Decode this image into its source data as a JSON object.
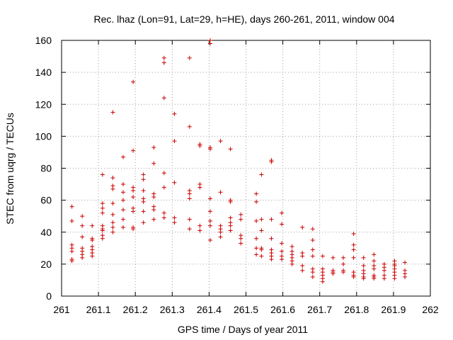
{
  "chart_data": {
    "type": "scatter",
    "title": "Rec. lhaz (Lon=91, Lat=29, h=HE), days 260-261, 2011, window 004",
    "xlabel": "GPS time / Days of year 2011",
    "ylabel": "STEC from uqrg / TECUs",
    "xlim": [
      261,
      262
    ],
    "ylim": [
      0,
      160
    ],
    "xticks": [
      "261",
      "261.1",
      "261.2",
      "261.3",
      "261.4",
      "261.5",
      "261.6",
      "261.7",
      "261.8",
      "261.9",
      "262"
    ],
    "yticks": [
      "0",
      "20",
      "40",
      "60",
      "80",
      "100",
      "120",
      "140",
      "160"
    ],
    "grid": true,
    "legend": "none",
    "marker": "+",
    "marker_color": "#cc0000",
    "series": [
      {
        "name": "STEC",
        "points": [
          [
            261.028,
            56
          ],
          [
            261.028,
            47
          ],
          [
            261.028,
            32
          ],
          [
            261.028,
            30
          ],
          [
            261.028,
            28
          ],
          [
            261.028,
            23
          ],
          [
            261.028,
            22
          ],
          [
            261.056,
            50
          ],
          [
            261.056,
            44
          ],
          [
            261.056,
            37
          ],
          [
            261.056,
            30
          ],
          [
            261.056,
            28
          ],
          [
            261.056,
            26
          ],
          [
            261.056,
            24
          ],
          [
            261.083,
            44
          ],
          [
            261.083,
            36
          ],
          [
            261.083,
            35
          ],
          [
            261.083,
            31
          ],
          [
            261.083,
            29
          ],
          [
            261.083,
            27
          ],
          [
            261.083,
            25
          ],
          [
            261.111,
            76
          ],
          [
            261.111,
            58
          ],
          [
            261.111,
            55
          ],
          [
            261.111,
            52
          ],
          [
            261.111,
            44
          ],
          [
            261.111,
            42
          ],
          [
            261.111,
            41
          ],
          [
            261.111,
            38
          ],
          [
            261.111,
            36
          ],
          [
            261.139,
            115
          ],
          [
            261.139,
            74
          ],
          [
            261.139,
            69
          ],
          [
            261.139,
            67
          ],
          [
            261.139,
            58
          ],
          [
            261.139,
            51
          ],
          [
            261.139,
            46
          ],
          [
            261.139,
            43
          ],
          [
            261.139,
            40
          ],
          [
            261.167,
            87
          ],
          [
            261.167,
            70
          ],
          [
            261.167,
            65
          ],
          [
            261.167,
            60
          ],
          [
            261.167,
            54
          ],
          [
            261.167,
            48
          ],
          [
            261.167,
            43
          ],
          [
            261.194,
            134
          ],
          [
            261.194,
            91
          ],
          [
            261.194,
            68
          ],
          [
            261.194,
            66
          ],
          [
            261.194,
            62
          ],
          [
            261.194,
            55
          ],
          [
            261.194,
            53
          ],
          [
            261.194,
            43
          ],
          [
            261.194,
            42
          ],
          [
            261.222,
            76
          ],
          [
            261.222,
            73
          ],
          [
            261.222,
            66
          ],
          [
            261.222,
            61
          ],
          [
            261.222,
            59
          ],
          [
            261.222,
            53
          ],
          [
            261.222,
            46
          ],
          [
            261.25,
            93
          ],
          [
            261.25,
            83
          ],
          [
            261.25,
            64
          ],
          [
            261.25,
            62
          ],
          [
            261.25,
            56
          ],
          [
            261.25,
            54
          ],
          [
            261.25,
            48
          ],
          [
            261.278,
            149
          ],
          [
            261.278,
            146
          ],
          [
            261.278,
            124
          ],
          [
            261.278,
            77
          ],
          [
            261.278,
            68
          ],
          [
            261.278,
            52
          ],
          [
            261.278,
            49
          ],
          [
            261.306,
            114
          ],
          [
            261.306,
            97
          ],
          [
            261.306,
            71
          ],
          [
            261.306,
            49
          ],
          [
            261.306,
            46
          ],
          [
            261.347,
            149
          ],
          [
            261.347,
            106
          ],
          [
            261.347,
            66
          ],
          [
            261.347,
            64
          ],
          [
            261.347,
            61
          ],
          [
            261.347,
            48
          ],
          [
            261.347,
            42
          ],
          [
            261.375,
            95
          ],
          [
            261.375,
            94
          ],
          [
            261.375,
            70
          ],
          [
            261.375,
            68
          ],
          [
            261.375,
            44
          ],
          [
            261.375,
            41
          ],
          [
            261.403,
            160
          ],
          [
            261.403,
            158
          ],
          [
            261.403,
            93
          ],
          [
            261.403,
            92
          ],
          [
            261.403,
            61
          ],
          [
            261.403,
            53
          ],
          [
            261.403,
            47
          ],
          [
            261.403,
            44
          ],
          [
            261.403,
            35
          ],
          [
            261.431,
            97
          ],
          [
            261.431,
            65
          ],
          [
            261.431,
            44
          ],
          [
            261.431,
            42
          ],
          [
            261.431,
            40
          ],
          [
            261.431,
            37
          ],
          [
            261.458,
            92
          ],
          [
            261.458,
            60
          ],
          [
            261.458,
            59
          ],
          [
            261.458,
            49
          ],
          [
            261.458,
            46
          ],
          [
            261.458,
            44
          ],
          [
            261.458,
            41
          ],
          [
            261.486,
            51
          ],
          [
            261.486,
            48
          ],
          [
            261.486,
            38
          ],
          [
            261.486,
            36
          ],
          [
            261.486,
            33
          ],
          [
            261.528,
            64
          ],
          [
            261.528,
            59
          ],
          [
            261.528,
            47
          ],
          [
            261.528,
            36
          ],
          [
            261.528,
            30
          ],
          [
            261.528,
            26
          ],
          [
            261.542,
            76
          ],
          [
            261.542,
            48
          ],
          [
            261.542,
            41
          ],
          [
            261.542,
            30
          ],
          [
            261.542,
            29
          ],
          [
            261.542,
            25
          ],
          [
            261.569,
            85
          ],
          [
            261.569,
            84
          ],
          [
            261.569,
            48
          ],
          [
            261.569,
            36
          ],
          [
            261.569,
            29
          ],
          [
            261.569,
            27
          ],
          [
            261.569,
            25
          ],
          [
            261.569,
            23
          ],
          [
            261.597,
            52
          ],
          [
            261.597,
            45
          ],
          [
            261.597,
            33
          ],
          [
            261.597,
            28
          ],
          [
            261.597,
            25
          ],
          [
            261.597,
            23
          ],
          [
            261.625,
            31
          ],
          [
            261.625,
            28
          ],
          [
            261.625,
            26
          ],
          [
            261.625,
            24
          ],
          [
            261.625,
            22
          ],
          [
            261.625,
            20
          ],
          [
            261.653,
            43
          ],
          [
            261.653,
            27
          ],
          [
            261.653,
            25
          ],
          [
            261.653,
            19
          ],
          [
            261.653,
            16
          ],
          [
            261.681,
            42
          ],
          [
            261.681,
            35
          ],
          [
            261.681,
            29
          ],
          [
            261.681,
            25
          ],
          [
            261.681,
            17
          ],
          [
            261.681,
            15
          ],
          [
            261.681,
            12
          ],
          [
            261.708,
            25
          ],
          [
            261.708,
            17
          ],
          [
            261.708,
            15
          ],
          [
            261.708,
            13
          ],
          [
            261.708,
            11
          ],
          [
            261.708,
            9
          ],
          [
            261.736,
            24
          ],
          [
            261.736,
            16
          ],
          [
            261.736,
            15
          ],
          [
            261.736,
            14
          ],
          [
            261.764,
            24
          ],
          [
            261.764,
            20
          ],
          [
            261.764,
            16
          ],
          [
            261.764,
            15
          ],
          [
            261.792,
            39
          ],
          [
            261.792,
            32
          ],
          [
            261.792,
            29
          ],
          [
            261.792,
            24
          ],
          [
            261.792,
            15
          ],
          [
            261.792,
            13
          ],
          [
            261.792,
            12
          ],
          [
            261.819,
            24
          ],
          [
            261.819,
            19
          ],
          [
            261.819,
            16
          ],
          [
            261.819,
            14
          ],
          [
            261.819,
            12
          ],
          [
            261.819,
            11
          ],
          [
            261.847,
            26
          ],
          [
            261.847,
            22
          ],
          [
            261.847,
            19
          ],
          [
            261.847,
            17
          ],
          [
            261.847,
            13
          ],
          [
            261.847,
            12
          ],
          [
            261.847,
            11
          ],
          [
            261.875,
            20
          ],
          [
            261.875,
            18
          ],
          [
            261.875,
            16
          ],
          [
            261.875,
            13
          ],
          [
            261.875,
            11
          ],
          [
            261.903,
            22
          ],
          [
            261.903,
            20
          ],
          [
            261.903,
            19
          ],
          [
            261.903,
            17
          ],
          [
            261.903,
            15
          ],
          [
            261.903,
            13
          ],
          [
            261.903,
            11
          ],
          [
            261.931,
            21
          ],
          [
            261.931,
            16
          ],
          [
            261.931,
            14
          ],
          [
            261.931,
            12
          ]
        ]
      }
    ]
  }
}
